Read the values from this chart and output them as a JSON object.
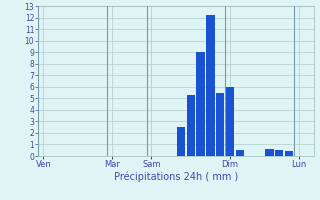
{
  "title": "",
  "xlabel": "Précipitations 24h ( mm )",
  "ylabel": "",
  "background_color": "#dff4f4",
  "bar_color": "#1a52d4",
  "grid_color": "#b0cccc",
  "text_color": "#4444aa",
  "vline_color": "#7799aa",
  "ylim": [
    0,
    13
  ],
  "yticks": [
    0,
    1,
    2,
    3,
    4,
    5,
    6,
    7,
    8,
    9,
    10,
    11,
    12,
    13
  ],
  "num_bars": 28,
  "bar_values": [
    0,
    0,
    0,
    0,
    0,
    0,
    0,
    0,
    0,
    0,
    0,
    0,
    0,
    0,
    2.5,
    5.3,
    9.0,
    12.2,
    5.5,
    6.0,
    0.5,
    0,
    0,
    0.6,
    0.5,
    0.4,
    0,
    0
  ],
  "day_labels": [
    "Ven",
    "Mar",
    "Sam",
    "Dim",
    "Lun"
  ],
  "day_tick_positions": [
    0,
    7,
    11,
    19,
    26
  ],
  "vline_positions": [
    0,
    7,
    11,
    19,
    26
  ]
}
